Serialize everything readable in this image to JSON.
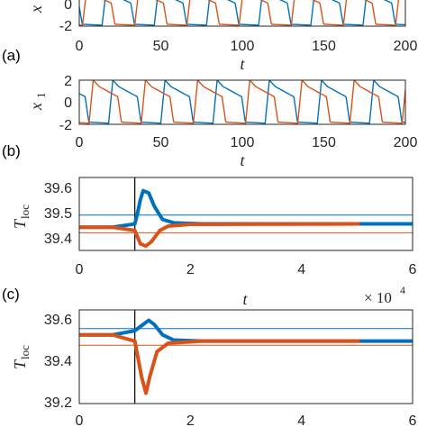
{
  "panels": {
    "a_label": "(a)",
    "b_label": "(b)",
    "c_label": "(c)"
  },
  "chart_data": [
    {
      "type": "line",
      "ylabel": "x",
      "xlabel": "t",
      "xlim": [
        0,
        200
      ],
      "ylim": [
        -2,
        2
      ],
      "xticks": [
        "0",
        "50",
        "100",
        "150",
        "200"
      ],
      "yticks": [
        "0",
        "-2"
      ],
      "colors": {
        "blue": "#0072BD",
        "orange": "#D95319"
      },
      "note": "top panel cropped; two relaxation-oscillator traces",
      "series": [
        {
          "color": "blue",
          "period": 32,
          "phase": 14
        },
        {
          "color": "orange",
          "period": 32,
          "phase": 2
        }
      ]
    },
    {
      "type": "line",
      "ylabel": "x",
      "ylabel_sub": "1",
      "xlabel": "t",
      "xlim": [
        0,
        200
      ],
      "ylim": [
        -2,
        2
      ],
      "xticks": [
        "0",
        "50",
        "100",
        "150",
        "200"
      ],
      "yticks": [
        "2",
        "0",
        "-2"
      ],
      "colors": {
        "blue": "#0072BD",
        "orange": "#D95319"
      },
      "series": [
        {
          "color": "blue",
          "period": 32,
          "phase": 18
        },
        {
          "color": "orange",
          "period": 32,
          "phase": 6
        }
      ]
    },
    {
      "type": "line",
      "ylabel": "T",
      "ylabel_sub": "loc",
      "xlabel": "t",
      "xlim": [
        0,
        6
      ],
      "ylim": [
        39.35,
        39.68
      ],
      "xticks": [
        "0",
        "2",
        "4",
        "6"
      ],
      "yticks": [
        "39.6",
        "39.5",
        "39.4"
      ],
      "vline_x": 1.0,
      "hlines": [
        {
          "color": "blue",
          "y": 39.51
        },
        {
          "color": "orange",
          "y": 39.43
        }
      ],
      "colors": {
        "blue": "#0072BD",
        "orange": "#D95319"
      },
      "series": [
        {
          "color": "blue",
          "points": [
            [
              0,
              39.455
            ],
            [
              0.6,
              39.455
            ],
            [
              1.0,
              39.47
            ],
            [
              1.05,
              39.52
            ],
            [
              1.1,
              39.58
            ],
            [
              1.15,
              39.62
            ],
            [
              1.25,
              39.61
            ],
            [
              1.35,
              39.55
            ],
            [
              1.5,
              39.49
            ],
            [
              1.7,
              39.475
            ],
            [
              2.2,
              39.47
            ],
            [
              6,
              39.47
            ]
          ]
        },
        {
          "color": "orange",
          "points": [
            [
              0,
              39.455
            ],
            [
              0.6,
              39.455
            ],
            [
              1.0,
              39.44
            ],
            [
              1.05,
              39.41
            ],
            [
              1.1,
              39.38
            ],
            [
              1.2,
              39.37
            ],
            [
              1.3,
              39.39
            ],
            [
              1.45,
              39.44
            ],
            [
              1.6,
              39.46
            ],
            [
              2.0,
              39.468
            ],
            [
              5.0,
              39.47
            ],
            [
              5.05,
              39.47
            ]
          ]
        }
      ]
    },
    {
      "type": "line",
      "ylabel": "T",
      "ylabel_sub": "loc",
      "xlabel": "t",
      "x_multiplier": "× 10",
      "x_multiplier_exp": "4",
      "xlim": [
        0,
        6
      ],
      "ylim": [
        39.15,
        39.6
      ],
      "xticks": [
        "0",
        "2",
        "4",
        "6"
      ],
      "yticks": [
        "39.6",
        "39.4",
        "39.2"
      ],
      "vline_x": 1.0,
      "hlines": [
        {
          "color": "blue",
          "y": 39.51
        },
        {
          "color": "orange",
          "y": 39.43
        }
      ],
      "colors": {
        "blue": "#0072BD",
        "orange": "#D95319"
      },
      "series": [
        {
          "color": "blue",
          "points": [
            [
              0,
              39.48
            ],
            [
              0.6,
              39.48
            ],
            [
              1.0,
              39.5
            ],
            [
              1.1,
              39.52
            ],
            [
              1.25,
              39.55
            ],
            [
              1.35,
              39.53
            ],
            [
              1.5,
              39.48
            ],
            [
              1.7,
              39.455
            ],
            [
              2.2,
              39.45
            ],
            [
              6,
              39.45
            ]
          ]
        },
        {
          "color": "orange",
          "points": [
            [
              0,
              39.48
            ],
            [
              0.6,
              39.48
            ],
            [
              1.0,
              39.45
            ],
            [
              1.05,
              39.38
            ],
            [
              1.12,
              39.28
            ],
            [
              1.2,
              39.2
            ],
            [
              1.27,
              39.28
            ],
            [
              1.4,
              39.4
            ],
            [
              1.6,
              39.44
            ],
            [
              2.2,
              39.45
            ],
            [
              5.0,
              39.45
            ],
            [
              5.05,
              39.45
            ]
          ]
        }
      ]
    }
  ]
}
